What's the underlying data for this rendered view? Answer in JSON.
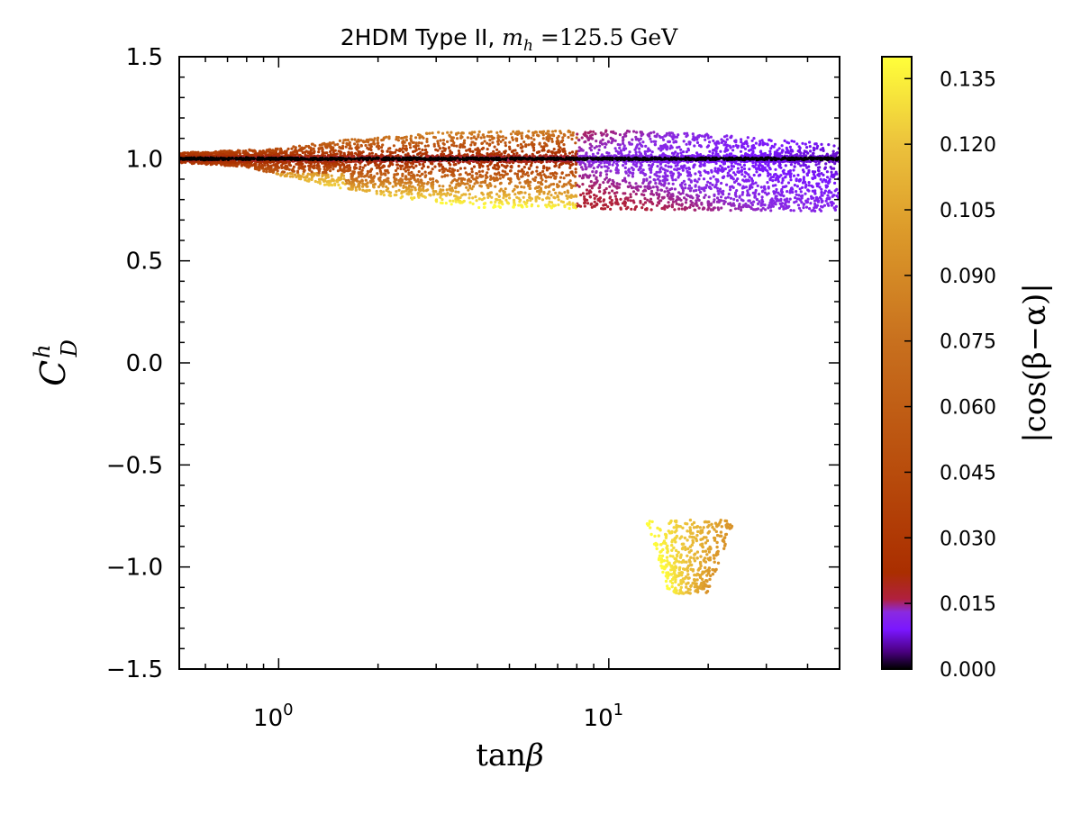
{
  "chart_data": {
    "type": "scatter",
    "title": {
      "prefix": "2HDM Type II, ",
      "var_symbol": "m",
      "var_subscript": "h",
      "equals": " =",
      "value": "125.5",
      "unit": "GeV"
    },
    "xlabel": {
      "func": "tan",
      "symbol": "β"
    },
    "ylabel": {
      "symbol": "C",
      "superscript": "h",
      "subscript": "D"
    },
    "xscale": "log",
    "xlim": [
      0.5,
      50
    ],
    "ylim": [
      -1.5,
      1.5
    ],
    "x_ticks": [
      {
        "value": 1,
        "base": "10",
        "exp": "0"
      },
      {
        "value": 10,
        "base": "10",
        "exp": "1"
      }
    ],
    "y_ticks": [
      {
        "value": 1.5,
        "label": "1.5"
      },
      {
        "value": 1.0,
        "label": "1.0"
      },
      {
        "value": 0.5,
        "label": "0.5"
      },
      {
        "value": 0.0,
        "label": "0.0"
      },
      {
        "value": -0.5,
        "label": "−0.5"
      },
      {
        "value": -1.0,
        "label": "−1.0"
      },
      {
        "value": -1.5,
        "label": "−1.5"
      }
    ],
    "colorbar": {
      "label": "|cos(β−α)|",
      "range": [
        0.0,
        0.14
      ],
      "ticks": [
        {
          "value": 0.0,
          "label": "0.000"
        },
        {
          "value": 0.015,
          "label": "0.015"
        },
        {
          "value": 0.03,
          "label": "0.030"
        },
        {
          "value": 0.045,
          "label": "0.045"
        },
        {
          "value": 0.06,
          "label": "0.060"
        },
        {
          "value": 0.075,
          "label": "0.075"
        },
        {
          "value": 0.09,
          "label": "0.090"
        },
        {
          "value": 0.105,
          "label": "0.105"
        },
        {
          "value": 0.12,
          "label": "0.120"
        },
        {
          "value": 0.135,
          "label": "0.135"
        }
      ],
      "colormap": [
        {
          "v": 0.0,
          "color": "#000000"
        },
        {
          "v": 0.004,
          "color": "#4b0082"
        },
        {
          "v": 0.009,
          "color": "#7a16ff"
        },
        {
          "v": 0.013,
          "color": "#8a2ae0"
        },
        {
          "v": 0.016,
          "color": "#b0203f"
        },
        {
          "v": 0.022,
          "color": "#aa2e00"
        },
        {
          "v": 0.045,
          "color": "#b84c0c"
        },
        {
          "v": 0.075,
          "color": "#c8701e"
        },
        {
          "v": 0.1,
          "color": "#dc9a2a"
        },
        {
          "v": 0.12,
          "color": "#ecc23c"
        },
        {
          "v": 0.14,
          "color": "#ffff3a"
        }
      ]
    },
    "series": [
      {
        "name": "main band (C_D^h > 0)",
        "description": "dense band of points around C_D^h ≈ 1 for tanβ from 0.5 to 50",
        "center_y": 1.0,
        "upper_y": [
          {
            "x": 0.5,
            "y": 1.03
          },
          {
            "x": 1.0,
            "y": 1.05
          },
          {
            "x": 1.5,
            "y": 1.09
          },
          {
            "x": 3.0,
            "y": 1.13
          },
          {
            "x": 10.0,
            "y": 1.14
          },
          {
            "x": 20.0,
            "y": 1.12
          },
          {
            "x": 50.0,
            "y": 1.07
          }
        ],
        "lower_y": [
          {
            "x": 0.5,
            "y": 0.98
          },
          {
            "x": 0.8,
            "y": 0.96
          },
          {
            "x": 1.0,
            "y": 0.92
          },
          {
            "x": 1.5,
            "y": 0.86
          },
          {
            "x": 2.5,
            "y": 0.8
          },
          {
            "x": 4.0,
            "y": 0.76
          },
          {
            "x": 50.0,
            "y": 0.74
          }
        ]
      },
      {
        "name": "wrong-sign island (C_D^h < 0)",
        "description": "isolated cluster of points near tanβ ≈ 13–24 and C_D^h ≈ −0.78 to −1.13",
        "x_range": [
          12.9,
          24.0
        ],
        "y_range": [
          -1.13,
          -0.77
        ],
        "color_range": [
          0.09,
          0.14
        ]
      }
    ]
  }
}
